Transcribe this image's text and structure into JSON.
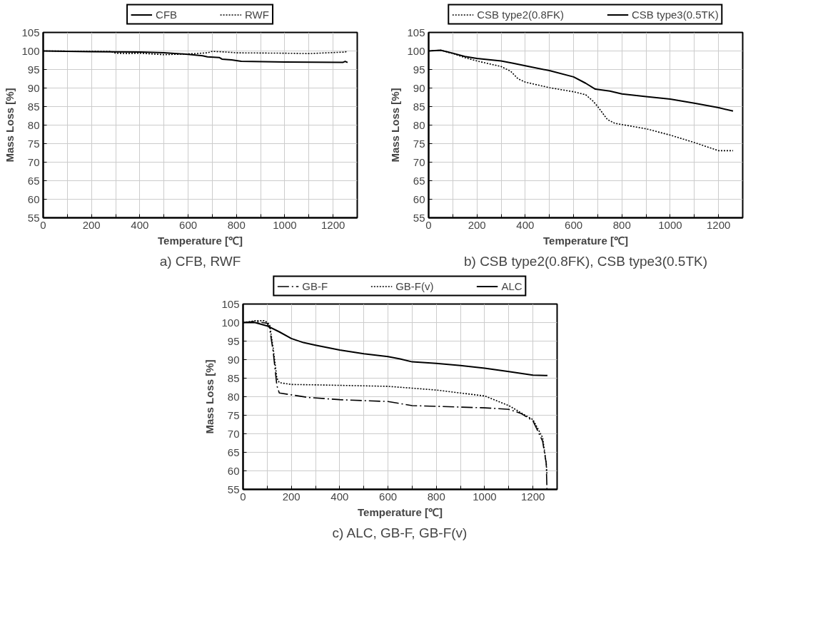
{
  "chart_data": [
    {
      "type": "line",
      "title": "a) CFB, RWF",
      "xlabel": "Temperature [℃]",
      "ylabel": "Mass Loss [%]",
      "xlim": [
        0,
        1300
      ],
      "ylim": [
        55,
        105
      ],
      "xticks": [
        0,
        {
          "value": 100,
          "label": null
        },
        200,
        {
          "value": 300,
          "label": null
        },
        400,
        {
          "value": 500,
          "label": null
        },
        600,
        {
          "value": 700,
          "label": null
        },
        800,
        {
          "value": 900,
          "label": null
        },
        1000,
        {
          "value": 1100,
          "label": null
        },
        1200
      ],
      "yticks": [
        55,
        60,
        65,
        70,
        75,
        80,
        85,
        90,
        95,
        100,
        105
      ],
      "grid": true,
      "legend": "top",
      "marker": "none",
      "series": [
        {
          "name": "CFB",
          "color": "#000000",
          "line_style": "solid",
          "x": [
            0,
            200,
            400,
            500,
            600,
            660,
            680,
            730,
            740,
            780,
            820,
            1000,
            1240,
            1250,
            1260
          ],
          "values": [
            100,
            99.8,
            99.7,
            99.5,
            99.1,
            98.7,
            98.4,
            98.2,
            97.8,
            97.6,
            97.2,
            97.0,
            96.9,
            97.2,
            96.9
          ]
        },
        {
          "name": "RWF",
          "color": "#000000",
          "line_style": "dotted",
          "x": [
            0,
            280,
            300,
            350,
            400,
            500,
            600,
            680,
            700,
            760,
            800,
            1000,
            1100,
            1250,
            1260
          ],
          "values": [
            100,
            99.9,
            99.4,
            99.3,
            99.4,
            99.0,
            99.2,
            99.5,
            99.9,
            99.7,
            99.5,
            99.4,
            99.3,
            99.7,
            100
          ]
        }
      ]
    },
    {
      "type": "line",
      "title": "b) CSB type2(0.8FK), CSB type3(0.5TK)",
      "xlabel": "Temperature [℃]",
      "ylabel": "Mass Loss [%]",
      "xlim": [
        0,
        1300
      ],
      "ylim": [
        55,
        105
      ],
      "xticks": [
        0,
        {
          "value": 100,
          "label": null
        },
        200,
        {
          "value": 300,
          "label": null
        },
        400,
        {
          "value": 500,
          "label": null
        },
        600,
        {
          "value": 700,
          "label": null
        },
        800,
        {
          "value": 900,
          "label": null
        },
        1000,
        {
          "value": 1100,
          "label": null
        },
        1200
      ],
      "yticks": [
        55,
        60,
        65,
        70,
        75,
        80,
        85,
        90,
        95,
        100,
        105
      ],
      "grid": true,
      "legend": "top",
      "marker": "none",
      "series": [
        {
          "name": "CSB type2(0.8FK)",
          "color": "#000000",
          "line_style": "dotted",
          "x": [
            0,
            50,
            100,
            150,
            200,
            300,
            340,
            370,
            400,
            500,
            600,
            650,
            680,
            700,
            740,
            770,
            900,
            1000,
            1100,
            1200,
            1260
          ],
          "values": [
            100,
            100.2,
            99.3,
            98.2,
            97.3,
            95.8,
            94.5,
            92.5,
            91.6,
            90.1,
            89,
            88.2,
            86.5,
            85,
            81.5,
            80.5,
            79,
            77.3,
            75.3,
            73.1,
            73.1
          ]
        },
        {
          "name": "CSB type3(0.5TK)",
          "color": "#000000",
          "line_style": "solid",
          "x": [
            0,
            50,
            100,
            150,
            200,
            300,
            350,
            400,
            500,
            600,
            650,
            690,
            750,
            800,
            900,
            1000,
            1100,
            1200,
            1260
          ],
          "values": [
            100,
            100.2,
            99.4,
            98.5,
            98,
            97.3,
            96.7,
            96,
            94.7,
            93,
            91.3,
            89.7,
            89.2,
            88.4,
            87.7,
            87,
            85.9,
            84.7,
            83.8
          ]
        }
      ]
    },
    {
      "type": "line",
      "title": "c) ALC, GB-F, GB-F(v)",
      "xlabel": "Temperature [℃]",
      "ylabel": "Mass Loss [%]",
      "xlim": [
        0,
        1300
      ],
      "ylim": [
        55,
        105
      ],
      "xticks": [
        0,
        {
          "value": 100,
          "label": null
        },
        200,
        {
          "value": 300,
          "label": null
        },
        400,
        {
          "value": 500,
          "label": null
        },
        600,
        {
          "value": 700,
          "label": null
        },
        800,
        {
          "value": 900,
          "label": null
        },
        1000,
        {
          "value": 1100,
          "label": null
        },
        1200
      ],
      "yticks": [
        55,
        60,
        65,
        70,
        75,
        80,
        85,
        90,
        95,
        100,
        105
      ],
      "grid": true,
      "legend": "top",
      "marker": "none",
      "series": [
        {
          "name": "GB-F",
          "color": "#000000",
          "line_style": "dashed",
          "x": [
            0,
            50,
            100,
            110,
            125,
            140,
            150,
            200,
            270,
            400,
            600,
            700,
            800,
            1000,
            1100,
            1150,
            1200,
            1240,
            1255,
            1258
          ],
          "values": [
            100,
            100.3,
            99.8,
            98.5,
            92,
            83,
            81,
            80.5,
            79.8,
            79.2,
            78.7,
            77.6,
            77.4,
            77,
            76.6,
            75.5,
            73.5,
            68,
            62,
            55
          ]
        },
        {
          "name": "GB-F(v)",
          "color": "#000000",
          "line_style": "dotted",
          "x": [
            0,
            50,
            90,
            110,
            125,
            140,
            150,
            200,
            300,
            600,
            700,
            800,
            900,
            1000,
            1100,
            1200,
            1240,
            1255,
            1258
          ],
          "values": [
            100,
            100.5,
            100.5,
            99.5,
            93,
            85,
            83.8,
            83.3,
            83.2,
            82.8,
            82.3,
            81.8,
            81,
            80.2,
            77.6,
            73.8,
            69,
            62,
            59
          ]
        },
        {
          "name": "ALC",
          "color": "#000000",
          "line_style": "solid",
          "x": [
            0,
            50,
            100,
            150,
            200,
            250,
            300,
            400,
            500,
            600,
            650,
            700,
            800,
            900,
            1000,
            1100,
            1200,
            1260
          ],
          "values": [
            100,
            100,
            99.1,
            97.5,
            95.7,
            94.6,
            93.9,
            92.6,
            91.6,
            90.8,
            90.2,
            89.4,
            89,
            88.4,
            87.7,
            86.8,
            85.8,
            85.7
          ]
        }
      ]
    }
  ]
}
